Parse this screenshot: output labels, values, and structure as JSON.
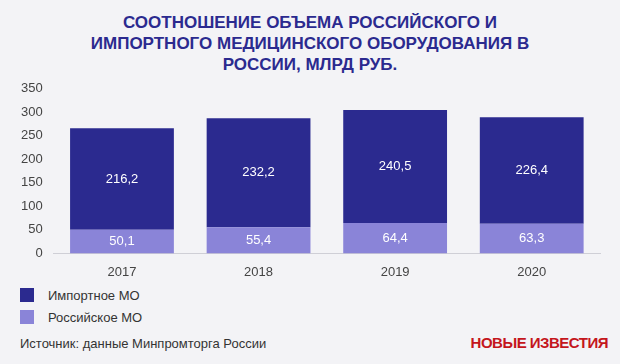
{
  "chart_data": {
    "type": "bar",
    "title": "СООТНОШЕНИЕ ОБЪЕМА РОССИЙСКОГО И ИМПОРТНОГО МЕДИЦИНСКОГО ОБОРУДОВАНИЯ В РОССИИ, МЛРД РУБ.",
    "source": "Источник: данные Минпромторга России",
    "logo": "НОВЫЕ ИЗВЕСТИЯ",
    "categories": [
      "2017",
      "2018",
      "2019",
      "2020"
    ],
    "series": [
      {
        "name": "Импортное МО",
        "color": "#2b2a8f",
        "values": [
          216.2,
          232.2,
          240.5,
          226.4
        ],
        "value_labels": [
          "216,2",
          "232,2",
          "240,5",
          "226,4"
        ]
      },
      {
        "name": "Российское МО",
        "color": "#8a84d8",
        "values": [
          50.1,
          55.4,
          64.4,
          63.3
        ],
        "value_labels": [
          "50,1",
          "55,4",
          "64,4",
          "63,3"
        ]
      }
    ],
    "stacked": true,
    "data_labels": true,
    "legend": "lower left",
    "grid": false,
    "ylim": [
      0,
      350
    ],
    "yticks": [
      0,
      50,
      100,
      150,
      200,
      250,
      300,
      350
    ]
  }
}
